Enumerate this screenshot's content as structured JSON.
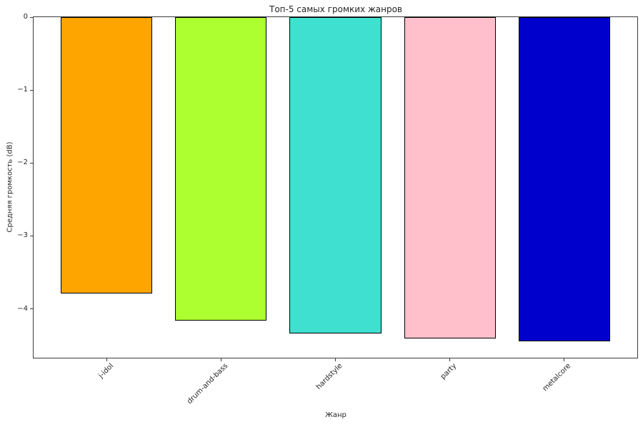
{
  "chart_data": {
    "type": "bar",
    "title": "Топ-5 самых громких жанров",
    "xlabel": "Жанр",
    "ylabel": "Средняя громкость (dB)",
    "categories": [
      "j-idol",
      "drum-and-bass",
      "hardstyle",
      "party",
      "metalcore"
    ],
    "values": [
      -3.79,
      -4.16,
      -4.34,
      -4.41,
      -4.44
    ],
    "bar_colors": [
      "#FFA500",
      "#ADFF2F",
      "#40E0D0",
      "#FFC0CB",
      "#0000CD"
    ],
    "bar_edge_color": "#000000",
    "yticks": [
      0,
      -1,
      -2,
      -3,
      -4
    ],
    "ytick_labels": [
      "0",
      "−1",
      "−2",
      "−3",
      "−4"
    ],
    "ylim": [
      -4.67,
      0
    ],
    "xlim": [
      -0.64,
      4.64
    ],
    "bar_width": 0.8,
    "x_tick_rotation_deg": 45,
    "grid": false,
    "legend": null
  }
}
